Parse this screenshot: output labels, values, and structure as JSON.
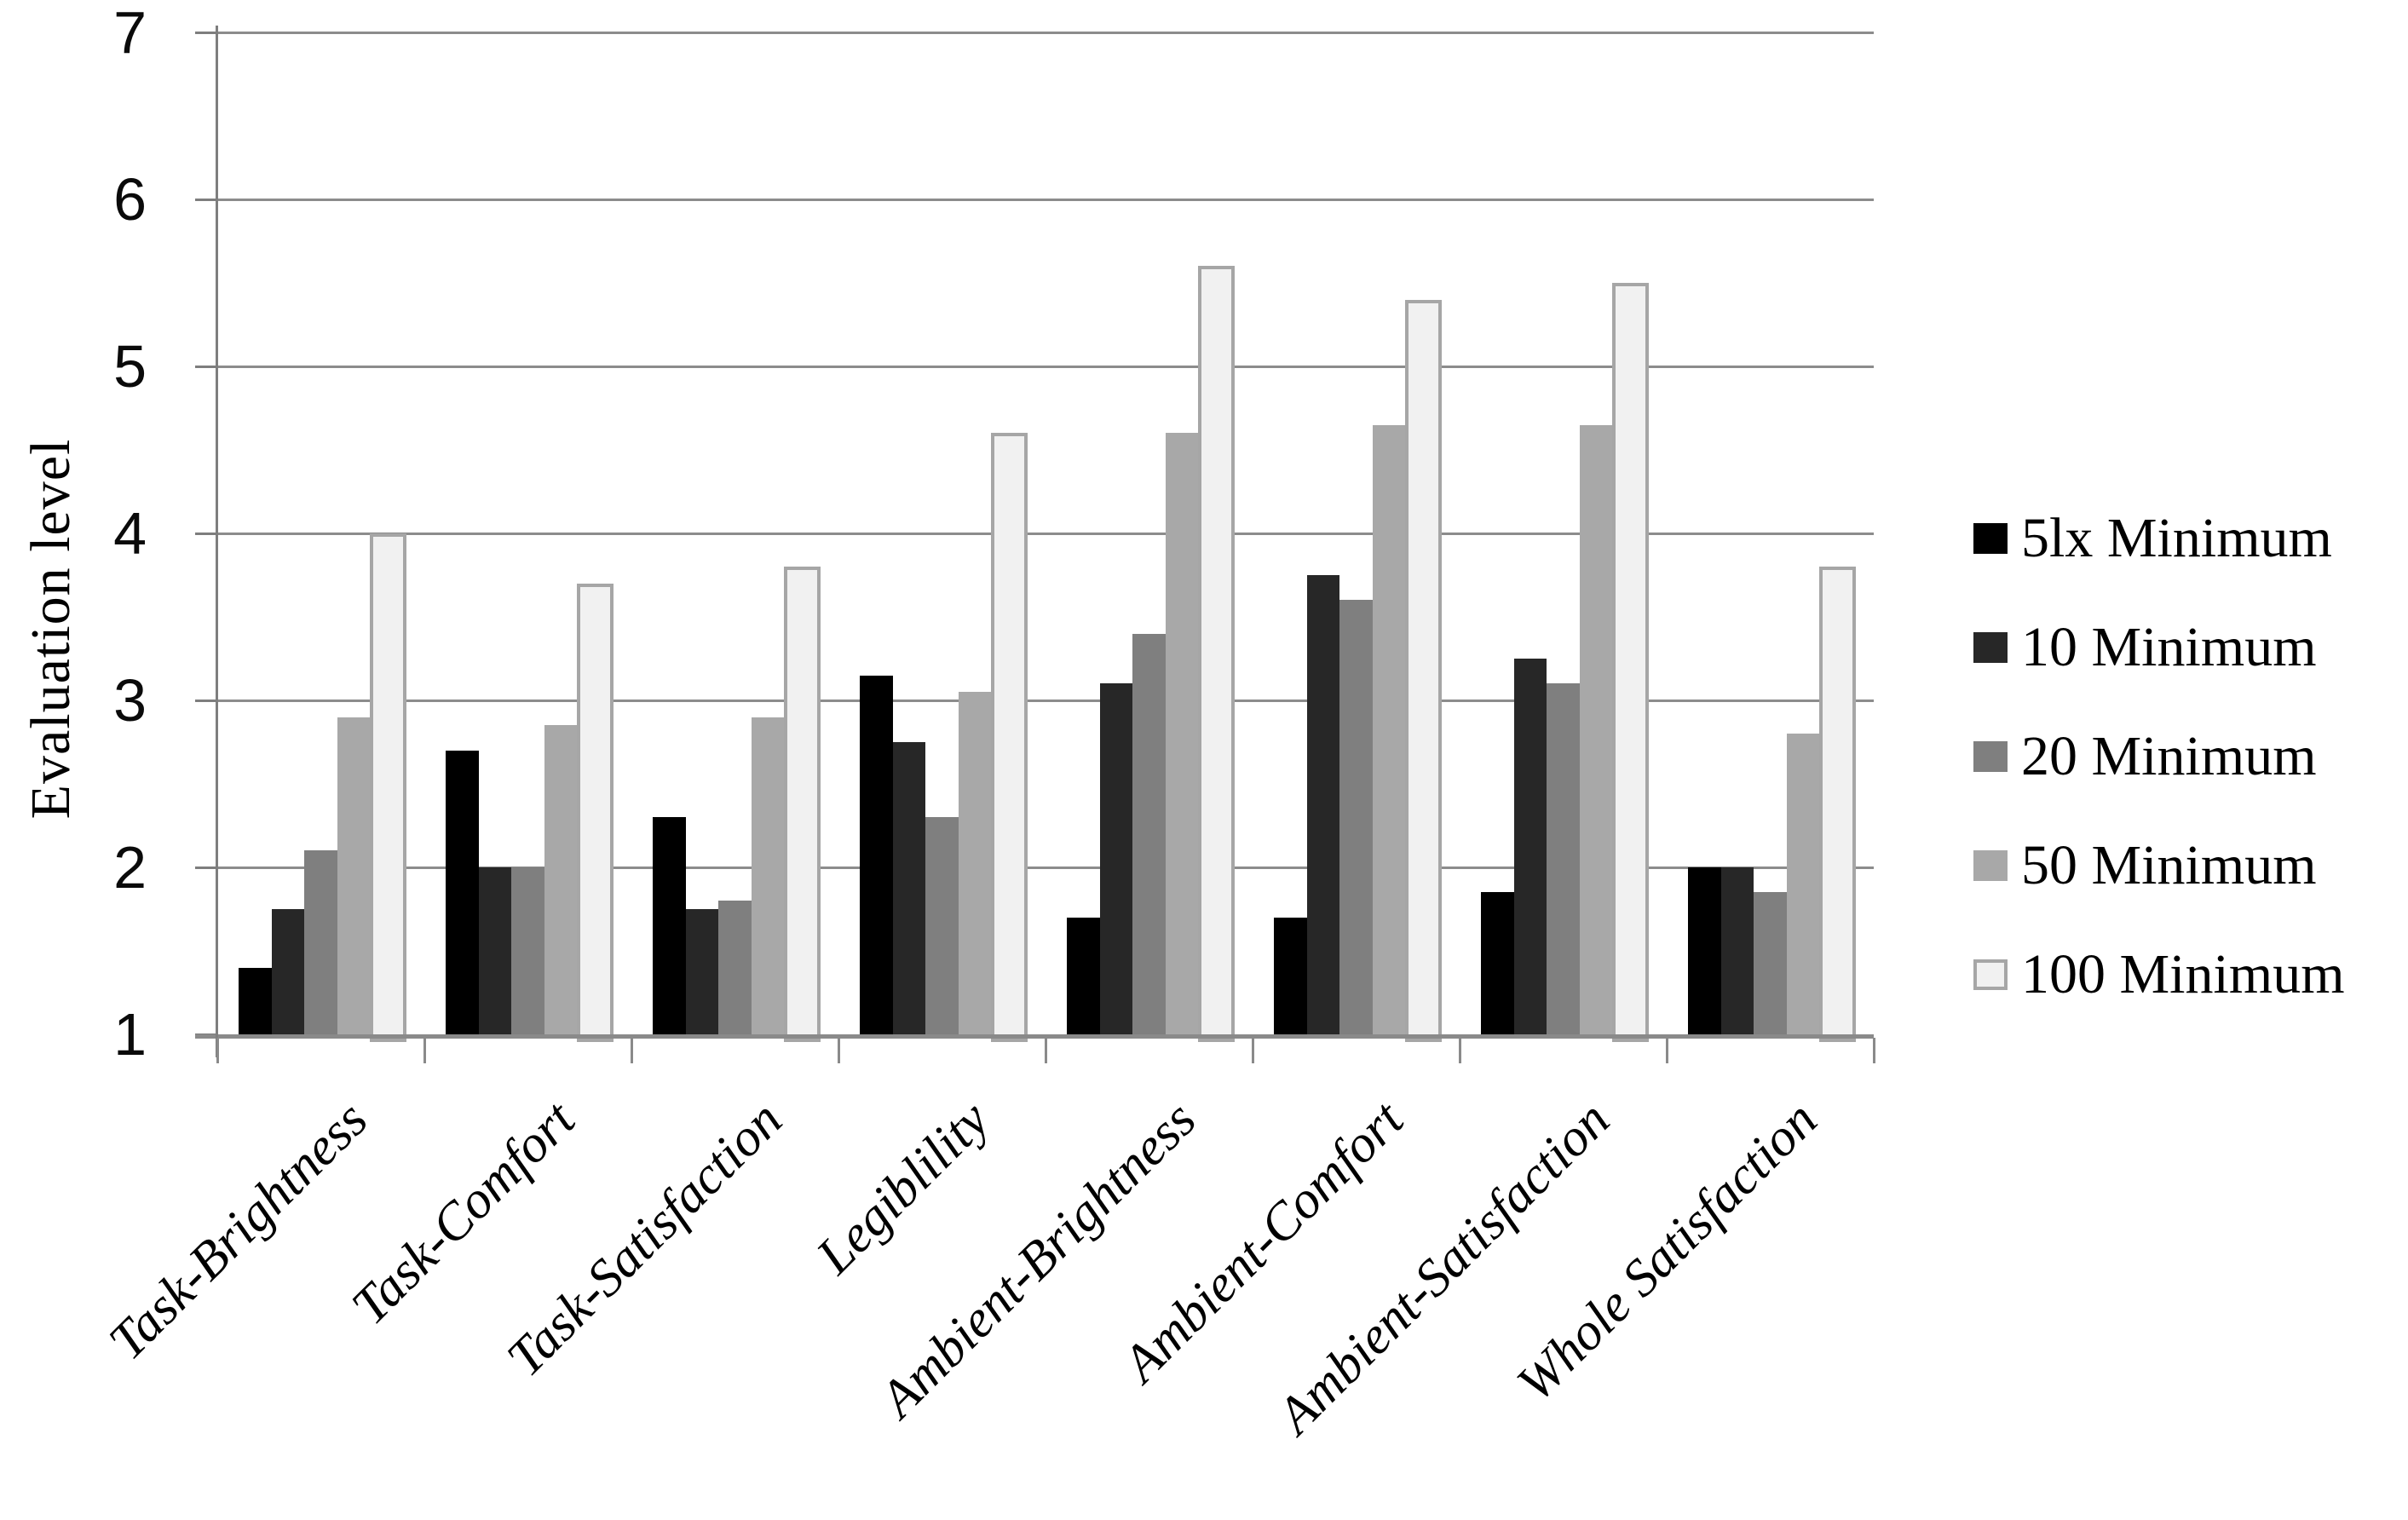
{
  "chart_data": {
    "type": "bar",
    "title": "",
    "xlabel": "",
    "ylabel": "Evaluation level",
    "ylim": [
      1,
      7
    ],
    "yticks": [
      "1",
      "2",
      "3",
      "4",
      "5",
      "6",
      "7"
    ],
    "grid": true,
    "legend_position": "right",
    "categories": [
      "Task-Brightness",
      "Task-Comfort",
      "Task-Satisfaction",
      "Legiblility",
      "Ambient-Brightness",
      "Ambient-Comfort",
      "Ambient-Satisfaction",
      "Whole Satisfaction"
    ],
    "series": [
      {
        "name": "5lx Minimum",
        "color": "#000000",
        "values": [
          1.4,
          2.7,
          2.3,
          3.15,
          1.7,
          1.7,
          1.85,
          2.0
        ]
      },
      {
        "name": "10 Minimum",
        "color": "#272727",
        "values": [
          1.75,
          2.0,
          1.75,
          2.75,
          3.1,
          3.75,
          3.25,
          2.0
        ]
      },
      {
        "name": "20 Minimum",
        "color": "#7f7f7f",
        "values": [
          2.1,
          2.0,
          1.8,
          2.3,
          3.4,
          3.6,
          3.1,
          1.85
        ]
      },
      {
        "name": "50 Minimum",
        "color": "#a8a8a8",
        "values": [
          2.9,
          2.85,
          2.9,
          3.05,
          4.6,
          4.65,
          4.65,
          2.8
        ]
      },
      {
        "name": "100 Minimum",
        "color": "#f1f1f1",
        "border_color": "#a6a6a6",
        "values": [
          4.0,
          3.7,
          3.8,
          4.6,
          5.6,
          5.4,
          5.5,
          3.8
        ]
      }
    ]
  },
  "colors": {
    "gridline": "#8c8c8c",
    "axis": "#8a8a8a",
    "text": "#000000",
    "background": "#ffffff"
  }
}
